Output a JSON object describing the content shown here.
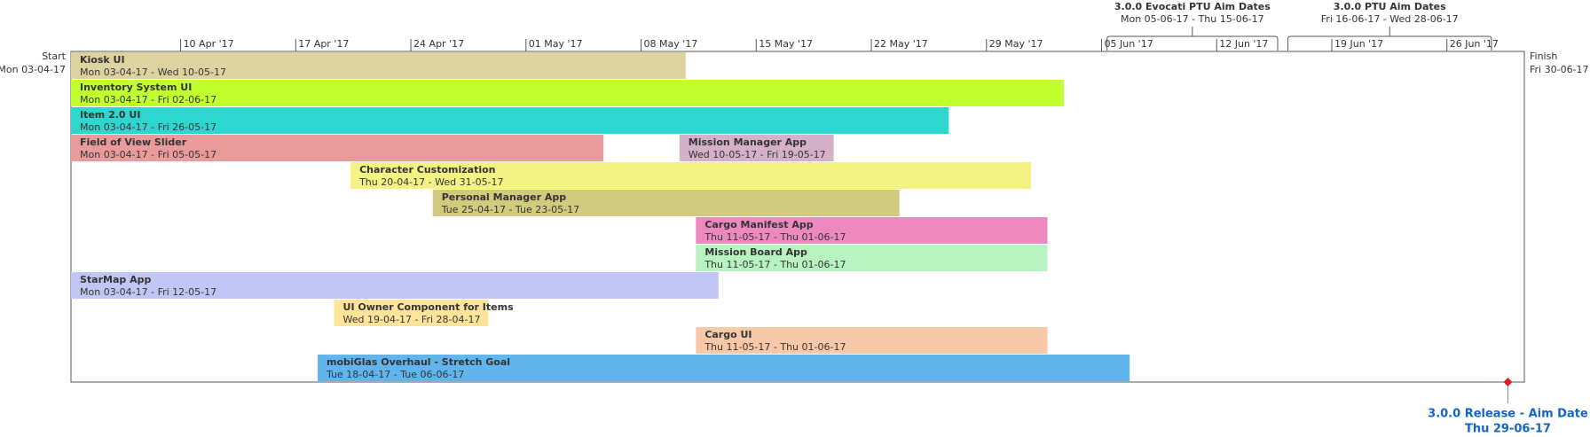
{
  "chart_data": {
    "type": "gantt",
    "start": {
      "label": "Start",
      "date": "Mon 03-04-17"
    },
    "finish": {
      "label": "Finish",
      "date": "Fri 30-06-17"
    },
    "xticks": [
      "10 Apr '17",
      "17 Apr '17",
      "24 Apr '17",
      "01 May '17",
      "08 May '17",
      "15 May '17",
      "22 May '17",
      "29 May '17",
      "05 Jun '17",
      "12 Jun '17",
      "19 Jun '17",
      "26 Jun '17"
    ],
    "rows": [
      [
        {
          "name": "Kiosk UI",
          "dates": "Mon 03-04-17 - Wed 10-05-17",
          "color": "#ddd3a0"
        }
      ],
      [
        {
          "name": "Inventory System UI",
          "dates": "Mon 03-04-17 - Fri 02-06-17",
          "color": "#c2ff2e"
        }
      ],
      [
        {
          "name": "Item 2.0 UI",
          "dates": "Mon 03-04-17 - Fri 26-05-17",
          "color": "#2dd6cf"
        }
      ],
      [
        {
          "name": "Field of View Slider",
          "dates": "Mon 03-04-17 - Fri 05-05-17",
          "color": "#e89b9a"
        },
        {
          "name": "Mission Manager App",
          "dates": "Wed 10-05-17 - Fri 19-05-17",
          "color": "#d4b1c9"
        }
      ],
      [
        {
          "name": "Character Customization",
          "dates": "Thu 20-04-17 - Wed 31-05-17",
          "color": "#f4f283"
        }
      ],
      [
        {
          "name": "Personal Manager App",
          "dates": "Tue 25-04-17 - Tue 23-05-17",
          "color": "#d2ca7d"
        }
      ],
      [
        {
          "name": "Cargo Manifest App",
          "dates": "Thu 11-05-17 - Thu 01-06-17",
          "color": "#ec8ac0"
        }
      ],
      [
        {
          "name": "Mission Board App",
          "dates": "Thu 11-05-17 - Thu 01-06-17",
          "color": "#b7f2c0"
        }
      ],
      [
        {
          "name": "StarMap App",
          "dates": "Mon 03-04-17 - Fri 12-05-17",
          "color": "#c1c6f4"
        }
      ],
      [
        {
          "name": "UI Owner Component for Items",
          "dates": "Wed 19-04-17 - Fri 28-04-17",
          "color": "#fde49a"
        }
      ],
      [
        {
          "name": "Cargo UI",
          "dates": "Thu 11-05-17 - Thu 01-06-17",
          "color": "#f8c9a9"
        }
      ],
      [
        {
          "name": "mobiGlas Overhaul - Stretch Goal",
          "dates": "Tue 18-04-17 - Tue 06-06-17",
          "color": "#62b5ec"
        }
      ]
    ],
    "brackets": [
      {
        "name": "3.0.0 Evocati PTU Aim Dates",
        "dates": "Mon 05-06-17 - Thu 15-06-17"
      },
      {
        "name": "3.0.0 PTU Aim Dates",
        "dates": "Fri 16-06-17 - Wed 28-06-17"
      }
    ],
    "milestones": [
      {
        "name": "3.0.0 Release - Aim Date",
        "date": "Thu 29-06-17",
        "color": "#1565c0"
      }
    ]
  }
}
